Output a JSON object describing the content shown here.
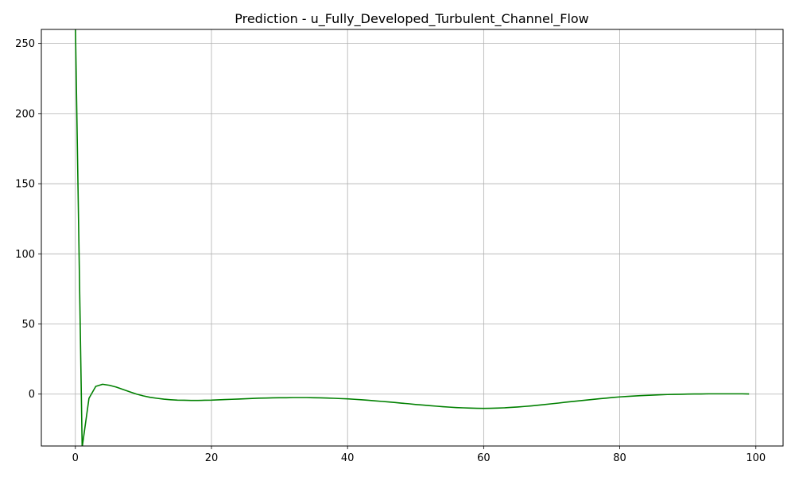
{
  "chart_data": {
    "type": "line",
    "title": "Prediction - u_Fully_Developed_Turbulent_Channel_Flow",
    "xlabel": "",
    "ylabel": "",
    "xlim": [
      -5,
      104
    ],
    "ylim": [
      -37,
      260
    ],
    "grid": true,
    "legend": "none",
    "xticks": [
      0,
      20,
      40,
      60,
      80,
      100
    ],
    "yticks": [
      0,
      50,
      100,
      150,
      200,
      250
    ],
    "series": [
      {
        "color": "#008000",
        "x": [
          0,
          1,
          2,
          3,
          4,
          5,
          6,
          7,
          8,
          9,
          10,
          11,
          12,
          13,
          14,
          15,
          16,
          17,
          18,
          19,
          20,
          21,
          22,
          23,
          24,
          25,
          26,
          27,
          28,
          29,
          30,
          31,
          32,
          33,
          34,
          35,
          36,
          37,
          38,
          39,
          40,
          41,
          42,
          43,
          44,
          45,
          46,
          47,
          48,
          49,
          50,
          51,
          52,
          53,
          54,
          55,
          56,
          57,
          58,
          59,
          60,
          61,
          62,
          63,
          64,
          65,
          66,
          67,
          68,
          69,
          70,
          71,
          72,
          73,
          74,
          75,
          76,
          77,
          78,
          79,
          80,
          81,
          82,
          83,
          84,
          85,
          86,
          87,
          88,
          89,
          90,
          91,
          92,
          93,
          94,
          95,
          96,
          97,
          98,
          99
        ],
        "y": [
          265,
          -38,
          -3,
          5.5,
          7,
          6.3,
          5,
          3.3,
          1.6,
          0,
          -1.3,
          -2.3,
          -3,
          -3.6,
          -4,
          -4.3,
          -4.4,
          -4.5,
          -4.5,
          -4.4,
          -4.3,
          -4.1,
          -3.9,
          -3.7,
          -3.5,
          -3.3,
          -3.1,
          -2.9,
          -2.8,
          -2.7,
          -2.6,
          -2.6,
          -2.5,
          -2.5,
          -2.5,
          -2.6,
          -2.7,
          -2.8,
          -3.0,
          -3.2,
          -3.4,
          -3.7,
          -4.0,
          -4.4,
          -4.8,
          -5.2,
          -5.6,
          -6.0,
          -6.5,
          -6.9,
          -7.4,
          -7.8,
          -8.2,
          -8.6,
          -9.0,
          -9.3,
          -9.6,
          -9.8,
          -10.0,
          -10.1,
          -10.2,
          -10.1,
          -10.0,
          -9.8,
          -9.5,
          -9.2,
          -8.8,
          -8.4,
          -7.9,
          -7.4,
          -6.9,
          -6.4,
          -5.8,
          -5.3,
          -4.8,
          -4.3,
          -3.8,
          -3.3,
          -2.9,
          -2.4,
          -2.0,
          -1.7,
          -1.4,
          -1.1,
          -0.9,
          -0.7,
          -0.5,
          -0.3,
          -0.2,
          -0.1,
          0,
          0.1,
          0.1,
          0.2,
          0.2,
          0.2,
          0.2,
          0.2,
          0.2,
          0.1
        ]
      }
    ]
  }
}
